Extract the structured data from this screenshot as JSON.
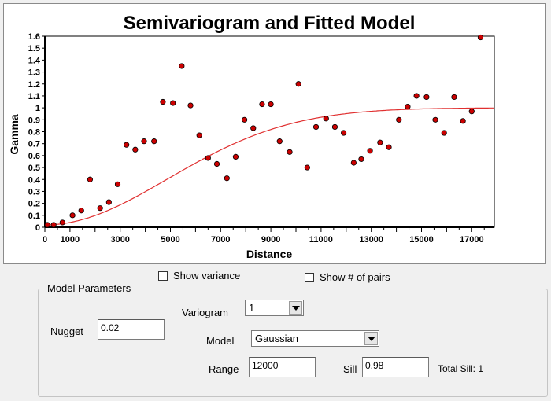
{
  "chart_data": {
    "type": "scatter",
    "title": "Semivariogram and Fitted Model",
    "xlabel": "Distance",
    "ylabel": "Gamma",
    "xlim": [
      0,
      17900
    ],
    "ylim": [
      0,
      1.6
    ],
    "x_ticks": [
      0,
      1000,
      3000,
      5000,
      7000,
      9000,
      11000,
      13000,
      15000,
      17000
    ],
    "y_ticks": [
      0,
      0.1,
      0.2,
      0.3,
      0.4,
      0.5,
      0.6,
      0.7,
      0.8,
      0.9,
      1,
      1.1,
      1.2,
      1.3,
      1.4,
      1.5,
      1.6
    ],
    "grid": false,
    "points_color": "#cc0000",
    "curve_color": "#e03030",
    "points": [
      [
        100,
        0.02
      ],
      [
        350,
        0.02
      ],
      [
        700,
        0.04
      ],
      [
        1100,
        0.1
      ],
      [
        1450,
        0.14
      ],
      [
        1800,
        0.4
      ],
      [
        2200,
        0.16
      ],
      [
        2550,
        0.21
      ],
      [
        2900,
        0.36
      ],
      [
        3250,
        0.69
      ],
      [
        3600,
        0.65
      ],
      [
        3950,
        0.72
      ],
      [
        4350,
        0.72
      ],
      [
        4700,
        1.05
      ],
      [
        5100,
        1.04
      ],
      [
        5450,
        1.35
      ],
      [
        5800,
        1.02
      ],
      [
        6150,
        0.77
      ],
      [
        6500,
        0.58
      ],
      [
        6850,
        0.53
      ],
      [
        7250,
        0.41
      ],
      [
        7600,
        0.59
      ],
      [
        7950,
        0.9
      ],
      [
        8300,
        0.83
      ],
      [
        8650,
        1.03
      ],
      [
        9000,
        1.03
      ],
      [
        9350,
        0.72
      ],
      [
        9750,
        0.63
      ],
      [
        10100,
        1.2
      ],
      [
        10450,
        0.5
      ],
      [
        10800,
        0.84
      ],
      [
        11200,
        0.91
      ],
      [
        11550,
        0.84
      ],
      [
        11900,
        0.79
      ],
      [
        12300,
        0.54
      ],
      [
        12600,
        0.57
      ],
      [
        12950,
        0.64
      ],
      [
        13350,
        0.71
      ],
      [
        13700,
        0.67
      ],
      [
        14100,
        0.9
      ],
      [
        14450,
        1.01
      ],
      [
        14800,
        1.1
      ],
      [
        15200,
        1.09
      ],
      [
        15550,
        0.9
      ],
      [
        15900,
        0.79
      ],
      [
        16300,
        1.09
      ],
      [
        16650,
        0.89
      ],
      [
        17000,
        0.97
      ],
      [
        17350,
        1.59
      ]
    ],
    "model": {
      "type": "Gaussian",
      "nugget": 0.02,
      "sill": 0.98,
      "range": 12000
    }
  },
  "options": {
    "show_variance": "Show variance",
    "show_pairs": "Show # of pairs"
  },
  "model_parameters": {
    "title": "Model Parameters",
    "nugget_label": "Nugget",
    "nugget_value": "0.02",
    "variogram_label": "Variogram",
    "variogram_value": "1",
    "model_label": "Model",
    "model_value": "Gaussian",
    "range_label": "Range",
    "range_value": "12000",
    "sill_label": "Sill",
    "sill_value": "0.98",
    "total_sill": "Total Sill: 1"
  }
}
